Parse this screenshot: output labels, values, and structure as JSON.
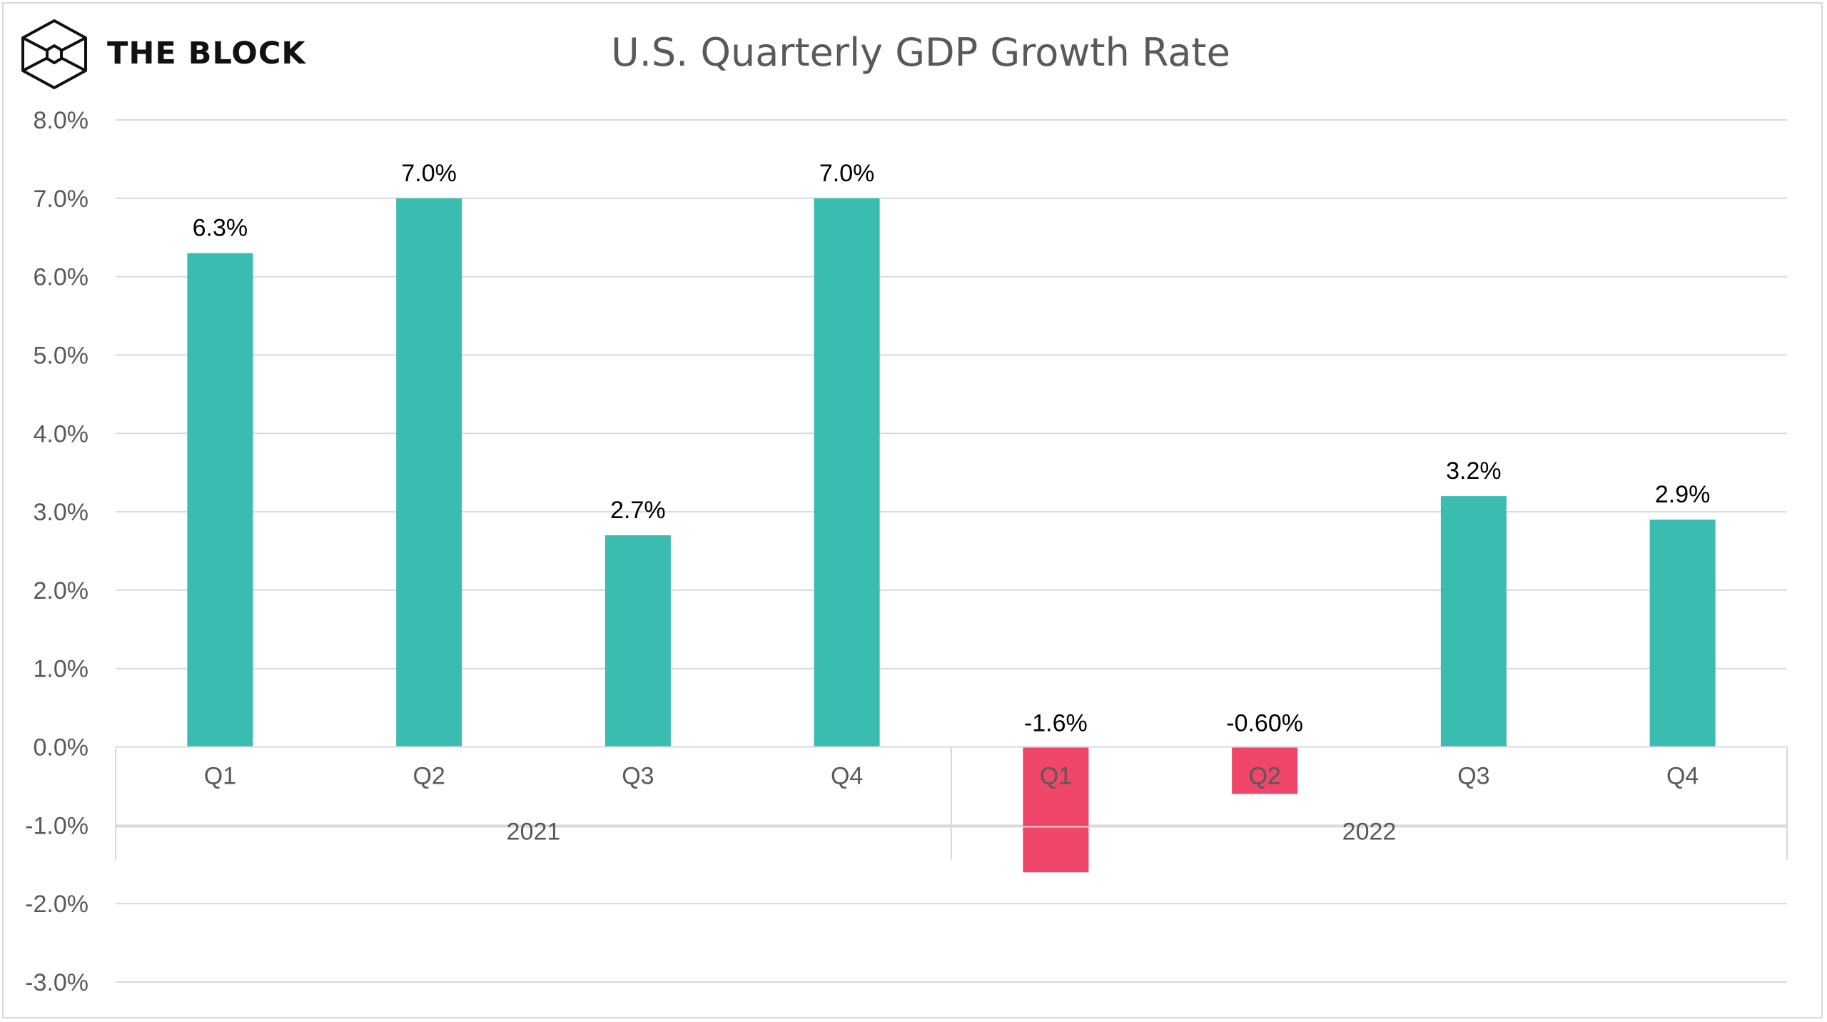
{
  "brand": {
    "name": "THE BLOCK",
    "logo_icon": "cube-logo-icon"
  },
  "chart_data": {
    "type": "bar",
    "title": "U.S. Quarterly GDP Growth Rate",
    "xlabel": "",
    "ylabel": "",
    "ylim": [
      -3.0,
      8.0
    ],
    "ytick_step": 1.0,
    "ytick_labels": [
      "8.0%",
      "7.0%",
      "6.0%",
      "5.0%",
      "4.0%",
      "3.0%",
      "2.0%",
      "1.0%",
      "0.0%",
      "-1.0%",
      "-2.0%",
      "-3.0%"
    ],
    "grid": true,
    "legend": "none",
    "groups": [
      {
        "label": "2021",
        "categories": [
          "Q1",
          "Q2",
          "Q3",
          "Q4"
        ]
      },
      {
        "label": "2022",
        "categories": [
          "Q1",
          "Q2",
          "Q3",
          "Q4"
        ]
      }
    ],
    "values": [
      6.3,
      7.0,
      2.7,
      7.0,
      -1.6,
      -0.6,
      3.2,
      2.9
    ],
    "data_labels": [
      "6.3%",
      "7.0%",
      "2.7%",
      "7.0%",
      "-1.6%",
      "-0.60%",
      "3.2%",
      "2.9%"
    ],
    "colors": {
      "positive": "#3bbcb1",
      "negative": "#ef4669",
      "grid": "#d9d9d9",
      "axis": "#d9d9d9"
    }
  }
}
